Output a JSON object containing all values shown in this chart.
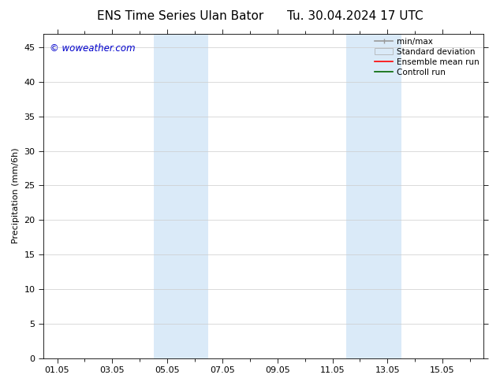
{
  "title_left": "ENS Time Series Ulan Bator",
  "title_right": "Tu. 30.04.2024 17 UTC",
  "ylabel": "Precipitation (mm/6h)",
  "watermark": "© woweather.com",
  "watermark_color": "#0000cc",
  "background_color": "#ffffff",
  "plot_bg_color": "#ffffff",
  "y_min": 0,
  "y_max": 47,
  "y_ticks": [
    0,
    5,
    10,
    15,
    20,
    25,
    30,
    35,
    40,
    45
  ],
  "x_tick_labels": [
    "01.05",
    "03.05",
    "05.05",
    "07.05",
    "09.05",
    "11.05",
    "13.05",
    "15.05"
  ],
  "x_tick_positions": [
    0,
    2,
    4,
    6,
    8,
    10,
    12,
    14
  ],
  "x_minor_tick_positions": [
    1,
    3,
    5,
    7,
    9,
    11,
    13,
    15
  ],
  "x_lim_min": -0.5,
  "x_lim_max": 15.5,
  "shaded_regions": [
    {
      "x_start": 3.5,
      "x_end": 5.5,
      "color": "#daeaf8"
    },
    {
      "x_start": 10.5,
      "x_end": 12.5,
      "color": "#daeaf8"
    }
  ],
  "legend_entries": [
    {
      "label": "min/max",
      "color": "#999999"
    },
    {
      "label": "Standard deviation",
      "color": "#daeaf8"
    },
    {
      "label": "Ensemble mean run",
      "color": "#ff0000"
    },
    {
      "label": "Controll run",
      "color": "#006600"
    }
  ],
  "title_fontsize": 11,
  "axis_label_fontsize": 8,
  "tick_fontsize": 8,
  "legend_fontsize": 7.5,
  "watermark_fontsize": 8.5
}
